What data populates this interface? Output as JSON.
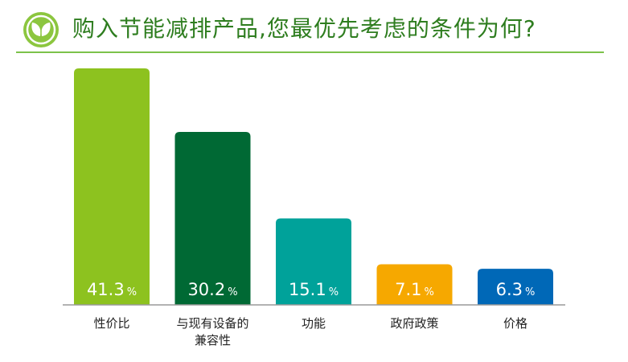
{
  "header": {
    "title": "购入节能减排产品,您最优先考虑的条件为何?",
    "logo_icon": "leaf-sprout-icon",
    "accent_color": "#8cc63f"
  },
  "chart_data": {
    "type": "bar",
    "title": "购入节能减排产品,您最优先考虑的条件为何?",
    "xlabel": "",
    "ylabel": "",
    "unit": "%",
    "categories": [
      "性价比",
      "与现有设备的兼容性",
      "功能",
      "政府政策",
      "价格"
    ],
    "category_lines": [
      [
        "性价比"
      ],
      [
        "与现有设备的",
        "兼容性"
      ],
      [
        "功能"
      ],
      [
        "政府政策"
      ],
      [
        "价格"
      ]
    ],
    "values": [
      41.3,
      30.2,
      15.1,
      7.1,
      6.3
    ],
    "value_labels": [
      "41.3",
      "30.2",
      "15.1",
      "7.1",
      "6.3"
    ],
    "colors": [
      "#8dc21f",
      "#006934",
      "#00a29a",
      "#f6a800",
      "#0068b7"
    ],
    "ylim": [
      0,
      45
    ],
    "grid": false,
    "legend": "none"
  }
}
